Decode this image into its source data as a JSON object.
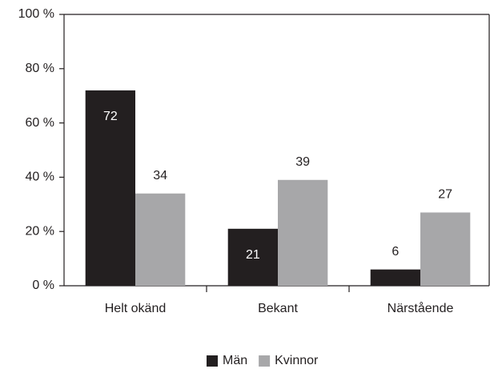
{
  "chart_data": {
    "type": "bar",
    "categories": [
      "Helt okänd",
      "Bekant",
      "Närstående"
    ],
    "series": [
      {
        "name": "Män",
        "color": "#231f20",
        "values": [
          72,
          21,
          6
        ]
      },
      {
        "name": "Kvinnor",
        "color": "#a7a7a9",
        "values": [
          34,
          39,
          27
        ]
      }
    ],
    "ylim": [
      0,
      100
    ],
    "yticks": [
      {
        "value": 0,
        "label": "0 %"
      },
      {
        "value": 20,
        "label": "20 %"
      },
      {
        "value": 40,
        "label": "40 %"
      },
      {
        "value": 60,
        "label": "60 %"
      },
      {
        "value": 80,
        "label": "80 %"
      },
      {
        "value": 100,
        "label": "100 %"
      }
    ],
    "grid": false
  }
}
